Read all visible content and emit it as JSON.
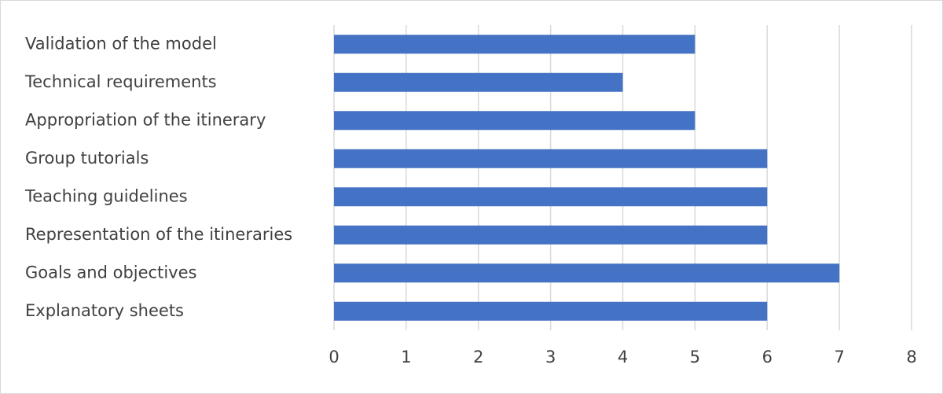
{
  "chart_data": {
    "type": "barh",
    "categories": [
      "Validation of the model",
      "Technical requirements",
      "Appropriation of the itinerary",
      "Group tutorials",
      "Teaching guidelines",
      "Representation of the itineraries",
      "Goals and objectives",
      "Explanatory sheets"
    ],
    "values": [
      5,
      4,
      5,
      6,
      6,
      6,
      7,
      6
    ],
    "color": "#4472c4",
    "xlim": [
      0,
      8
    ],
    "xticks": [
      0,
      1,
      2,
      3,
      4,
      5,
      6,
      7,
      8
    ],
    "grid": true
  }
}
